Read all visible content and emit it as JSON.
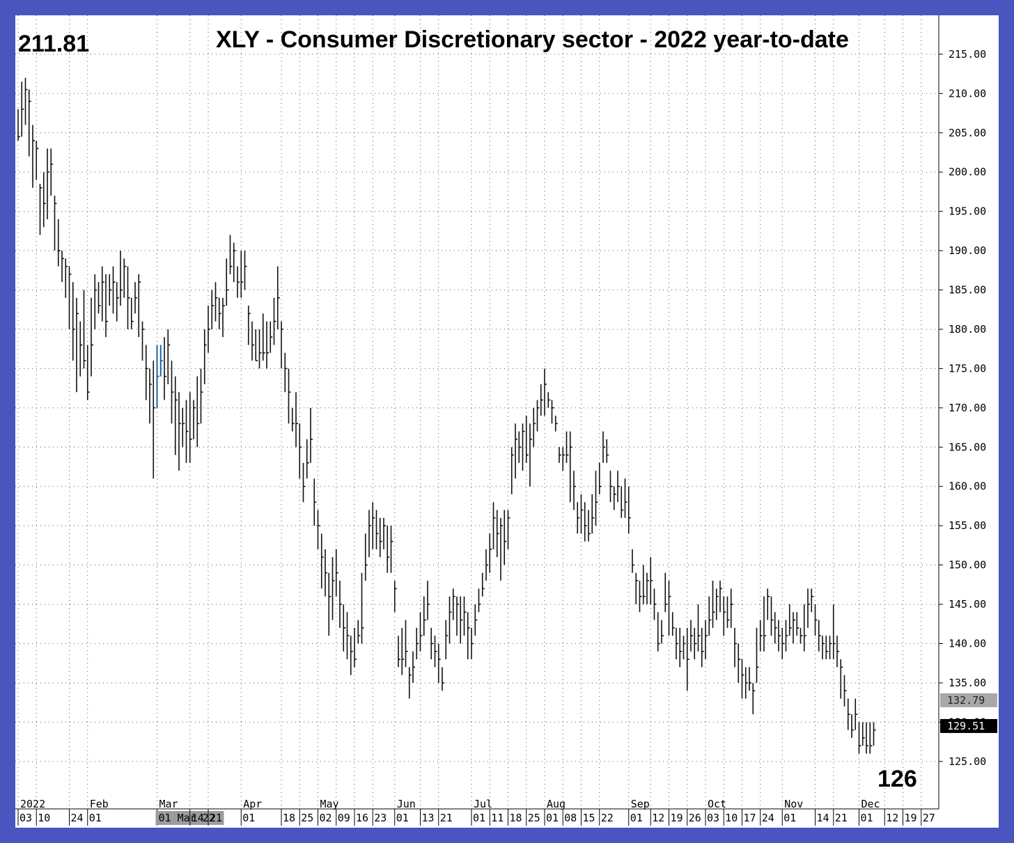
{
  "chart_data": {
    "type": "ohlc-bar",
    "title": "XLY - Consumer Discretionary sector - 2022 year-to-date",
    "start_label": "211.81",
    "end_label": "126",
    "ylim": [
      121,
      218
    ],
    "yticks": [
      "125.00",
      "130.00",
      "135.00",
      "140.00",
      "145.00",
      "150.00",
      "155.00",
      "160.00",
      "165.00",
      "170.00",
      "175.00",
      "180.00",
      "185.00",
      "190.00",
      "195.00",
      "200.00",
      "205.00",
      "210.00",
      "215.00"
    ],
    "price_markers": [
      {
        "label": "132.79",
        "value": 132.79,
        "style": "gray"
      },
      {
        "label": "129.51",
        "value": 129.51,
        "style": "black"
      }
    ],
    "months": [
      {
        "label": "2022",
        "idx": 0
      },
      {
        "label": "Feb",
        "idx": 19
      },
      {
        "label": "Mar",
        "idx": 38
      },
      {
        "label": "Apr",
        "idx": 61
      },
      {
        "label": "May",
        "idx": 82
      },
      {
        "label": "Jun",
        "idx": 103
      },
      {
        "label": "Jul",
        "idx": 124
      },
      {
        "label": "Aug",
        "idx": 144
      },
      {
        "label": "Sep",
        "idx": 167
      },
      {
        "label": "Oct",
        "idx": 188
      },
      {
        "label": "Nov",
        "idx": 209
      },
      {
        "label": "Dec",
        "idx": 230
      }
    ],
    "week_ticks": [
      {
        "label": "03",
        "idx": 0
      },
      {
        "label": "10",
        "idx": 5
      },
      {
        "label": "24",
        "idx": 14
      },
      {
        "label": "01",
        "idx": 19
      },
      {
        "label": "01 Mar 22",
        "idx": 38,
        "highlight": true
      },
      {
        "label": "14",
        "idx": 47
      },
      {
        "label": "21",
        "idx": 52
      },
      {
        "label": "01",
        "idx": 61
      },
      {
        "label": "18",
        "idx": 72
      },
      {
        "label": "25",
        "idx": 77
      },
      {
        "label": "02",
        "idx": 82
      },
      {
        "label": "09",
        "idx": 87
      },
      {
        "label": "16",
        "idx": 92
      },
      {
        "label": "23",
        "idx": 97
      },
      {
        "label": "01",
        "idx": 103
      },
      {
        "label": "13",
        "idx": 110
      },
      {
        "label": "21",
        "idx": 115
      },
      {
        "label": "01",
        "idx": 124
      },
      {
        "label": "11",
        "idx": 129
      },
      {
        "label": "18",
        "idx": 134
      },
      {
        "label": "25",
        "idx": 139
      },
      {
        "label": "01",
        "idx": 144
      },
      {
        "label": "08",
        "idx": 149
      },
      {
        "label": "15",
        "idx": 154
      },
      {
        "label": "22",
        "idx": 159
      },
      {
        "label": "01",
        "idx": 167
      },
      {
        "label": "12",
        "idx": 173
      },
      {
        "label": "19",
        "idx": 178
      },
      {
        "label": "26",
        "idx": 183
      },
      {
        "label": "03",
        "idx": 188
      },
      {
        "label": "10",
        "idx": 193
      },
      {
        "label": "17",
        "idx": 198
      },
      {
        "label": "24",
        "idx": 203
      },
      {
        "label": "01",
        "idx": 209
      },
      {
        "label": "14",
        "idx": 218
      },
      {
        "label": "21",
        "idx": 223
      },
      {
        "label": "01",
        "idx": 230
      },
      {
        "label": "12",
        "idx": 237
      },
      {
        "label": "19",
        "idx": 242
      },
      {
        "label": "27",
        "idx": 247
      }
    ],
    "highlight_bars": [
      38,
      39
    ],
    "bars": [
      [
        204.5,
        208,
        204
      ],
      [
        208,
        211.5,
        204.5
      ],
      [
        210.5,
        212,
        206
      ],
      [
        209,
        210.5,
        202
      ],
      [
        204,
        206,
        198
      ],
      [
        203,
        204,
        199
      ],
      [
        198,
        198.5,
        192
      ],
      [
        196,
        200,
        193
      ],
      [
        200,
        203,
        194
      ],
      [
        201,
        203,
        197
      ],
      [
        196,
        197,
        190
      ],
      [
        190,
        194,
        188
      ],
      [
        189,
        190,
        186
      ],
      [
        188,
        189,
        184
      ],
      [
        187,
        188,
        180
      ],
      [
        180,
        186,
        176
      ],
      [
        182,
        184,
        172
      ],
      [
        178,
        181,
        174
      ],
      [
        176,
        185,
        175
      ],
      [
        172,
        178,
        171
      ],
      [
        178,
        184,
        174
      ],
      [
        185,
        187,
        180
      ],
      [
        183,
        186,
        182
      ],
      [
        186,
        188,
        181
      ],
      [
        181,
        187,
        179
      ],
      [
        185,
        187,
        183
      ],
      [
        186,
        188,
        182
      ],
      [
        184,
        186,
        181
      ],
      [
        185,
        190,
        183
      ],
      [
        188,
        189,
        184
      ],
      [
        184,
        188,
        180
      ],
      [
        181,
        184,
        180
      ],
      [
        184,
        186,
        182
      ],
      [
        186,
        187,
        179
      ],
      [
        180,
        181,
        176
      ],
      [
        175,
        178,
        171
      ],
      [
        173,
        175,
        168
      ],
      [
        170,
        176,
        161
      ],
      [
        174,
        178,
        170
      ],
      [
        176,
        178,
        174
      ],
      [
        174,
        179,
        171
      ],
      [
        178,
        180,
        173
      ],
      [
        172,
        176,
        168
      ],
      [
        171,
        174,
        164
      ],
      [
        168,
        172,
        162
      ],
      [
        168,
        170,
        165
      ],
      [
        167,
        171,
        163
      ],
      [
        166,
        172,
        163
      ],
      [
        170,
        171,
        166
      ],
      [
        168,
        174,
        165
      ],
      [
        172,
        175,
        168
      ],
      [
        178,
        180,
        173
      ],
      [
        180,
        183,
        177
      ],
      [
        183,
        185,
        180
      ],
      [
        184,
        186,
        181
      ],
      [
        182,
        184,
        180
      ],
      [
        183,
        184,
        179
      ],
      [
        185,
        189,
        183
      ],
      [
        188,
        192,
        187
      ],
      [
        190,
        191,
        186
      ],
      [
        186,
        188,
        184
      ],
      [
        186,
        190,
        184
      ],
      [
        188,
        190,
        185
      ],
      [
        182,
        183,
        178
      ],
      [
        178,
        181,
        176
      ],
      [
        176,
        180,
        176
      ],
      [
        177,
        180,
        175
      ],
      [
        177,
        182,
        176
      ],
      [
        177,
        181,
        175
      ],
      [
        179,
        181,
        177
      ],
      [
        181,
        184,
        178
      ],
      [
        184,
        188,
        180
      ],
      [
        180,
        181,
        175
      ],
      [
        175,
        177,
        172
      ],
      [
        172,
        175,
        168
      ],
      [
        168,
        170,
        167
      ],
      [
        168,
        172,
        165
      ],
      [
        165,
        168,
        161
      ],
      [
        160,
        163,
        158
      ],
      [
        163,
        166,
        161
      ],
      [
        166,
        170,
        163
      ],
      [
        158,
        161,
        155
      ],
      [
        155,
        157,
        152
      ],
      [
        151,
        154,
        147
      ],
      [
        149,
        152,
        146
      ],
      [
        146,
        149,
        141
      ],
      [
        148,
        151,
        143
      ],
      [
        149,
        152,
        146
      ],
      [
        145,
        148,
        142
      ],
      [
        142,
        145,
        139
      ],
      [
        141,
        144,
        138
      ],
      [
        139,
        141,
        136
      ],
      [
        138,
        142,
        137
      ],
      [
        141,
        143,
        140
      ],
      [
        142,
        149,
        140
      ],
      [
        150,
        154,
        148
      ],
      [
        155,
        157,
        151
      ],
      [
        156,
        158,
        152
      ],
      [
        154,
        157,
        152
      ],
      [
        153,
        156,
        151
      ],
      [
        155,
        156,
        152
      ],
      [
        151,
        155,
        149
      ],
      [
        153,
        155,
        149
      ],
      [
        147,
        148,
        144
      ],
      [
        138,
        141,
        137
      ],
      [
        138,
        142,
        136
      ],
      [
        139,
        143,
        137
      ],
      [
        136,
        137,
        133
      ],
      [
        137,
        139,
        135
      ],
      [
        140,
        142,
        138
      ],
      [
        141,
        144,
        139
      ],
      [
        143,
        146,
        141
      ],
      [
        145,
        148,
        143
      ],
      [
        140,
        142,
        138
      ],
      [
        139,
        141,
        137
      ],
      [
        138,
        140,
        135
      ],
      [
        135,
        137,
        134
      ],
      [
        141,
        143,
        138
      ],
      [
        144,
        146,
        140
      ],
      [
        146,
        147,
        143
      ],
      [
        145,
        146,
        141
      ],
      [
        143,
        146,
        140
      ],
      [
        144,
        146,
        141
      ],
      [
        142,
        144,
        138
      ],
      [
        140,
        142,
        138
      ],
      [
        143,
        145,
        141
      ],
      [
        145,
        147,
        144
      ],
      [
        147,
        149,
        146
      ],
      [
        150,
        152,
        148
      ],
      [
        152,
        154,
        149
      ],
      [
        156,
        158,
        152
      ],
      [
        154,
        157,
        151
      ],
      [
        155,
        156,
        148
      ],
      [
        153,
        157,
        150
      ],
      [
        156,
        157,
        152
      ],
      [
        164,
        165,
        159
      ],
      [
        166,
        168,
        161
      ],
      [
        165,
        167,
        163
      ],
      [
        167,
        168,
        162
      ],
      [
        164,
        169,
        163
      ],
      [
        166,
        168,
        160
      ],
      [
        168,
        170,
        165
      ],
      [
        170,
        171,
        167
      ],
      [
        171,
        173,
        169
      ],
      [
        173,
        175,
        169
      ],
      [
        171,
        172,
        170
      ],
      [
        170,
        171,
        168
      ],
      [
        168,
        169,
        167
      ],
      [
        164,
        165,
        163
      ],
      [
        164,
        165,
        162
      ],
      [
        164,
        167,
        163
      ],
      [
        165,
        167,
        158
      ],
      [
        160,
        162,
        157
      ],
      [
        156,
        158,
        154
      ],
      [
        157,
        159,
        154
      ],
      [
        155,
        158,
        153
      ],
      [
        154,
        157,
        153
      ],
      [
        156,
        159,
        154
      ],
      [
        158,
        162,
        155
      ],
      [
        160,
        163,
        159
      ],
      [
        165,
        167,
        163
      ],
      [
        164,
        166,
        163
      ],
      [
        160,
        162,
        158
      ],
      [
        159,
        160,
        157
      ],
      [
        160,
        162,
        158
      ],
      [
        157,
        160,
        156
      ],
      [
        158,
        161,
        156
      ],
      [
        156,
        160,
        154
      ],
      [
        150,
        152,
        149
      ],
      [
        148,
        149,
        145
      ],
      [
        146,
        148,
        144
      ],
      [
        146,
        150,
        145
      ],
      [
        148,
        149,
        145
      ],
      [
        148,
        151,
        145
      ],
      [
        145,
        147,
        143
      ],
      [
        140,
        144,
        139
      ],
      [
        141,
        143,
        140
      ],
      [
        145,
        149,
        144
      ],
      [
        146,
        148,
        141
      ],
      [
        142,
        144,
        141
      ],
      [
        140,
        142,
        138
      ],
      [
        139,
        142,
        137
      ],
      [
        140,
        141,
        138
      ],
      [
        138,
        142,
        134
      ],
      [
        141,
        143,
        139
      ],
      [
        140,
        142,
        138
      ],
      [
        141,
        145,
        139
      ],
      [
        139,
        142,
        137
      ],
      [
        141,
        143,
        138
      ],
      [
        143,
        146,
        141
      ],
      [
        144,
        148,
        142
      ],
      [
        146,
        147,
        143
      ],
      [
        147,
        148,
        144
      ],
      [
        144,
        146,
        141
      ],
      [
        143,
        146,
        142
      ],
      [
        145,
        147,
        142
      ],
      [
        140,
        142,
        137
      ],
      [
        138,
        140,
        135
      ],
      [
        136,
        138,
        133
      ],
      [
        135,
        137,
        133
      ],
      [
        135,
        137,
        134
      ],
      [
        134,
        135,
        131
      ],
      [
        137,
        142,
        135
      ],
      [
        141,
        143,
        139
      ],
      [
        141,
        146,
        139
      ],
      [
        146,
        147,
        143
      ],
      [
        143,
        146,
        141
      ],
      [
        142,
        144,
        140
      ],
      [
        141,
        143,
        139
      ],
      [
        140,
        142,
        138
      ],
      [
        141,
        143,
        139
      ],
      [
        142,
        145,
        141
      ],
      [
        143,
        144,
        140
      ],
      [
        142,
        144,
        141
      ],
      [
        141,
        142,
        140
      ],
      [
        141,
        145,
        139
      ],
      [
        145,
        147,
        142
      ],
      [
        146,
        147,
        144
      ],
      [
        143,
        145,
        141
      ],
      [
        141,
        143,
        139
      ],
      [
        140,
        141,
        138
      ],
      [
        139,
        141,
        138
      ],
      [
        140,
        141,
        138
      ],
      [
        140,
        145,
        138
      ],
      [
        139,
        141,
        137
      ],
      [
        137,
        138,
        133
      ],
      [
        134,
        136,
        132
      ],
      [
        131,
        133,
        129
      ],
      [
        129,
        131,
        128
      ],
      [
        131,
        133,
        129
      ],
      [
        127,
        130,
        126
      ],
      [
        128,
        130,
        127
      ],
      [
        127,
        130,
        126
      ],
      [
        127,
        130,
        126
      ],
      [
        129,
        130,
        127
      ]
    ]
  }
}
